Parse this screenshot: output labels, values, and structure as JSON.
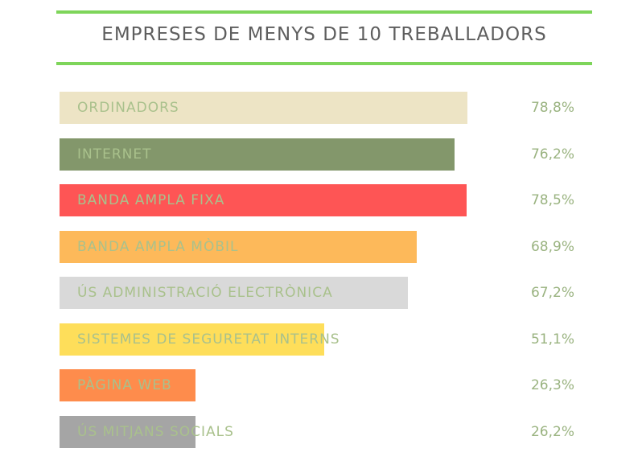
{
  "chart_data": {
    "type": "bar",
    "orientation": "horizontal",
    "title": "EMPRESES DE MENYS DE 10 TREBALLADORS",
    "categories": [
      "ORDINADORS",
      "INTERNET",
      "BANDA AMPLA FIXA",
      "BANDA AMPLA MÒBIL",
      "ÚS ADMINISTRACIÓ ELECTRÒNICA",
      "SISTEMES DE SEGURETAT INTERNS",
      "PÀGINA WEB",
      "ÚS MITJANS SOCIALS"
    ],
    "values": [
      78.8,
      76.2,
      78.5,
      68.9,
      67.2,
      51.1,
      26.3,
      26.2
    ],
    "value_labels": [
      "78,8%",
      "76,2%",
      "78,5%",
      "68,9%",
      "67,2%",
      "51,1%",
      "26,3%",
      "26,2%"
    ],
    "colors": [
      "#ede4c5",
      "#83976b",
      "#fe5555",
      "#fdb95a",
      "#d9d9d9",
      "#fede5a",
      "#fe8c4c",
      "#a5a5a5"
    ],
    "accent_color": "#7ed55a",
    "unit": "%",
    "grid": false,
    "legend": "none"
  }
}
